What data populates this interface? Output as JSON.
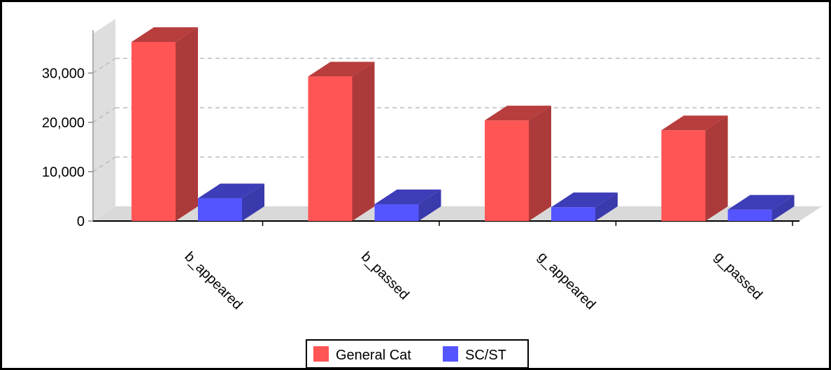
{
  "chart_data": {
    "type": "bar",
    "categories": [
      "b_appeared",
      "b_passed",
      "g_appeared",
      "g_passed"
    ],
    "series": [
      {
        "name": "General Cat",
        "values": [
          36300,
          29300,
          20400,
          18400
        ],
        "color": "#ff5555"
      },
      {
        "name": "SC/ST",
        "values": [
          4600,
          3400,
          2800,
          2300
        ],
        "color": "#5555ff"
      }
    ],
    "ylim": [
      0,
      38000
    ],
    "y_ticks": [
      0,
      10000,
      20000,
      30000
    ],
    "y_tick_labels": [
      "0",
      "10,000",
      "20,000",
      "30,000"
    ],
    "grid": true,
    "legend_position": "bottom-center",
    "three_d": true
  }
}
